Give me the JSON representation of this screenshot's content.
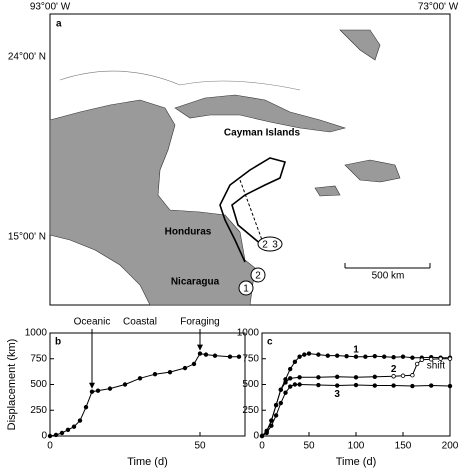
{
  "map": {
    "panel": "a",
    "lon_labels": [
      "93°00' W",
      "73°00' W"
    ],
    "lat_labels": [
      "24°00' N",
      "15°00' N"
    ],
    "places": [
      "Cayman Islands",
      "Honduras",
      "Nicaragua"
    ],
    "scale": "500 km",
    "markers": [
      "1",
      "2",
      "2",
      "3"
    ]
  },
  "chart_data": [
    {
      "type": "line",
      "panel": "b",
      "xlabel": "Time (d)",
      "ylabel": "Displacement (km)",
      "xlim": [
        0,
        65
      ],
      "xticks": [
        0,
        50
      ],
      "ylim": [
        0,
        1000
      ],
      "yticks": [
        0,
        250,
        500,
        750,
        1000
      ],
      "annotations": [
        {
          "text": "Oceanic",
          "x": 14
        },
        {
          "text": "Coastal",
          "x": 30
        },
        {
          "text": "Foraging",
          "x": 50
        }
      ],
      "series": [
        {
          "color": "#000000",
          "x": [
            0,
            2,
            4,
            6,
            8,
            10,
            12,
            14,
            16,
            20,
            25,
            30,
            35,
            40,
            45,
            48,
            50,
            52,
            55,
            60,
            63
          ],
          "values": [
            0,
            10,
            30,
            60,
            90,
            150,
            280,
            430,
            440,
            460,
            500,
            560,
            600,
            620,
            660,
            700,
            800,
            790,
            780,
            770,
            770
          ]
        }
      ]
    },
    {
      "type": "line",
      "panel": "c",
      "xlabel": "Time (d)",
      "xlim": [
        0,
        200
      ],
      "xticks": [
        0,
        50,
        100,
        150,
        200
      ],
      "ylim": [
        0,
        1000
      ],
      "yticks": [
        0,
        250,
        500,
        750,
        1000
      ],
      "annotations": [
        {
          "text": "shift",
          "x": 185
        }
      ],
      "series": [
        {
          "name": "1",
          "color": "#000000",
          "x": [
            0,
            5,
            10,
            15,
            20,
            25,
            30,
            35,
            40,
            45,
            50,
            60,
            70,
            80,
            90,
            100,
            110,
            120,
            130,
            140,
            150,
            160,
            170,
            180,
            190,
            200
          ],
          "values": [
            0,
            50,
            150,
            300,
            450,
            550,
            650,
            720,
            770,
            790,
            800,
            790,
            780,
            780,
            775,
            770,
            770,
            775,
            770,
            765,
            770,
            760,
            760,
            765,
            760,
            760
          ]
        },
        {
          "name": "2",
          "color": "#000000",
          "x": [
            0,
            5,
            10,
            15,
            20,
            25,
            30,
            40,
            60,
            80,
            100,
            120,
            140,
            150,
            160,
            165,
            170,
            180,
            190,
            200
          ],
          "values": [
            0,
            40,
            150,
            300,
            450,
            520,
            560,
            570,
            570,
            575,
            570,
            575,
            580,
            585,
            590,
            700,
            740,
            745,
            750,
            750
          ]
        },
        {
          "name": "3",
          "color": "#000000",
          "x": [
            0,
            5,
            10,
            15,
            20,
            25,
            30,
            35,
            40,
            60,
            80,
            100,
            120,
            140,
            160,
            180,
            200
          ],
          "values": [
            0,
            30,
            100,
            200,
            320,
            420,
            480,
            500,
            500,
            495,
            490,
            495,
            490,
            490,
            485,
            490,
            485
          ]
        }
      ]
    }
  ]
}
